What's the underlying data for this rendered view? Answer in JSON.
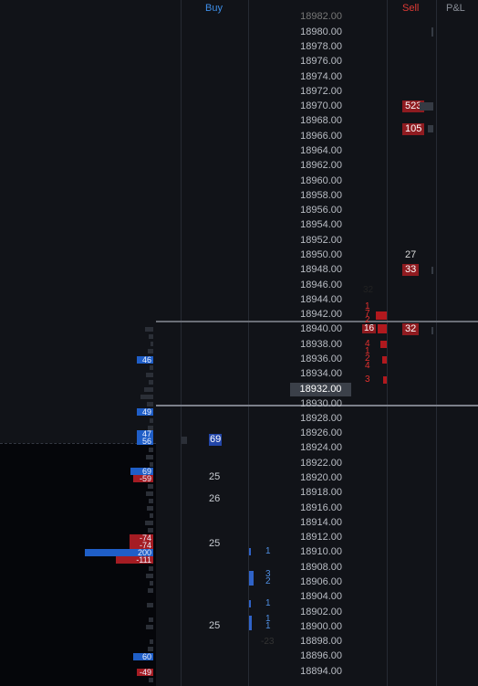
{
  "headers": {
    "buy": "Buy",
    "sell": "Sell",
    "pnl": "P&L"
  },
  "colors": {
    "buy": "#3e8ee8",
    "sell": "#e03a35",
    "background": "#111318"
  },
  "prices": [
    {
      "label": "18982.00"
    },
    {
      "label": "18980.00"
    },
    {
      "label": "18978.00"
    },
    {
      "label": "18976.00"
    },
    {
      "label": "18974.00"
    },
    {
      "label": "18972.00"
    },
    {
      "label": "18970.00"
    },
    {
      "label": "18968.00"
    },
    {
      "label": "18966.00"
    },
    {
      "label": "18964.00"
    },
    {
      "label": "18962.00"
    },
    {
      "label": "18960.00"
    },
    {
      "label": "18958.00"
    },
    {
      "label": "18956.00"
    },
    {
      "label": "18954.00"
    },
    {
      "label": "18952.00"
    },
    {
      "label": "18950.00"
    },
    {
      "label": "18948.00"
    },
    {
      "label": "18946.00"
    },
    {
      "label": "18944.00"
    },
    {
      "label": "18942.00"
    },
    {
      "label": "18940.00"
    },
    {
      "label": "18938.00"
    },
    {
      "label": "18936.00"
    },
    {
      "label": "18934.00"
    },
    {
      "label": "18932.00"
    },
    {
      "label": "18930.00"
    },
    {
      "label": "18928.00"
    },
    {
      "label": "18926.00"
    },
    {
      "label": "18924.00"
    },
    {
      "label": "18922.00"
    },
    {
      "label": "18920.00"
    },
    {
      "label": "18918.00"
    },
    {
      "label": "18916.00"
    },
    {
      "label": "18914.00"
    },
    {
      "label": "18912.00"
    },
    {
      "label": "18910.00"
    },
    {
      "label": "18908.00"
    },
    {
      "label": "18906.00"
    },
    {
      "label": "18904.00"
    },
    {
      "label": "18902.00"
    },
    {
      "label": "18900.00"
    },
    {
      "label": "18898.00"
    },
    {
      "label": "18896.00"
    },
    {
      "label": "18894.00"
    }
  ],
  "current_price": "18932.00",
  "sell_column": [
    {
      "text": "523",
      "style": "red"
    },
    {
      "text": "105",
      "style": "red"
    },
    {
      "text": "27",
      "style": "plain"
    },
    {
      "text": "33",
      "style": "red"
    },
    {
      "text": "32",
      "style": "red"
    }
  ],
  "sell_volume": [
    "32",
    "1",
    "7",
    "2",
    "16",
    "4",
    "1",
    "2",
    "4",
    "3"
  ],
  "buy_column": [
    {
      "text": "69",
      "style": "hl"
    },
    {
      "text": "25"
    },
    {
      "text": "26"
    },
    {
      "text": "25"
    },
    {
      "text": "25"
    }
  ],
  "buy_volume": [
    "1",
    "3",
    "2",
    "1",
    "1",
    "1",
    "-23"
  ],
  "left_badges": [
    "46",
    "49",
    "47",
    "56",
    "69",
    "-59",
    "-74",
    "-74",
    "200",
    "-111",
    "60",
    "-49"
  ]
}
